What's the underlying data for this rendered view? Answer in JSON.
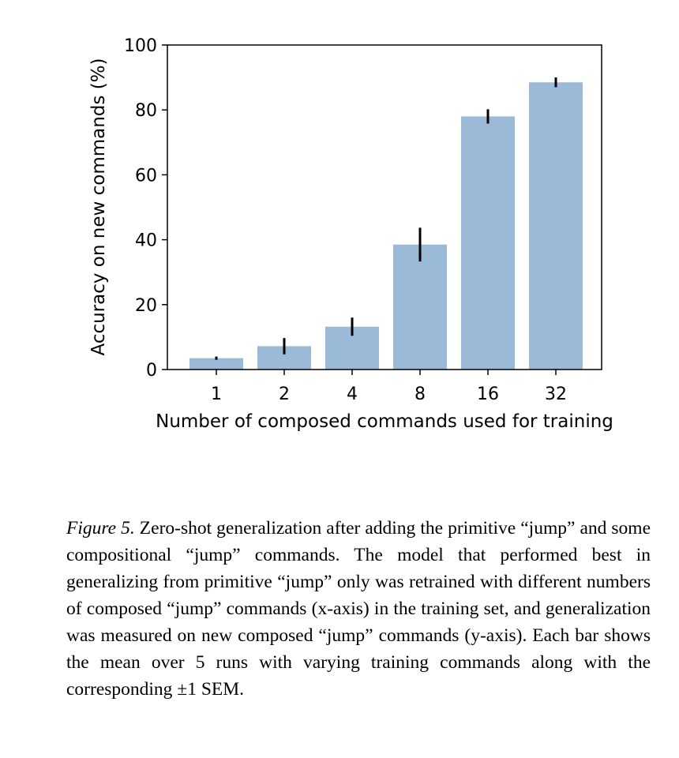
{
  "chart_data": {
    "type": "bar",
    "categories": [
      "1",
      "2",
      "4",
      "8",
      "16",
      "32"
    ],
    "values": [
      3.5,
      7.2,
      13.2,
      38.5,
      78.0,
      88.5
    ],
    "errors": [
      0.5,
      2.5,
      2.8,
      5.2,
      2.2,
      1.5
    ],
    "xlabel": "Number of composed commands used for training",
    "ylabel": "Accuracy on new commands (%)",
    "ylim": [
      0,
      100
    ],
    "yticks": [
      "0",
      "20",
      "40",
      "60",
      "80",
      "100"
    ],
    "grid": false,
    "bar_color": "#9bbad7",
    "error_color": "#000000"
  },
  "caption": {
    "label": "Figure 5.",
    "text": "Zero-shot generalization after adding the primitive “jump” and some compositional “jump” commands. The model that performed best in generalizing from primitive “jump” only was retrained with different numbers of composed “jump” commands (x-axis) in the training set, and generalization was measured on new composed “jump” commands (y-axis). Each bar shows the mean over 5 runs with varying training commands along with the corresponding ±1 SEM."
  }
}
